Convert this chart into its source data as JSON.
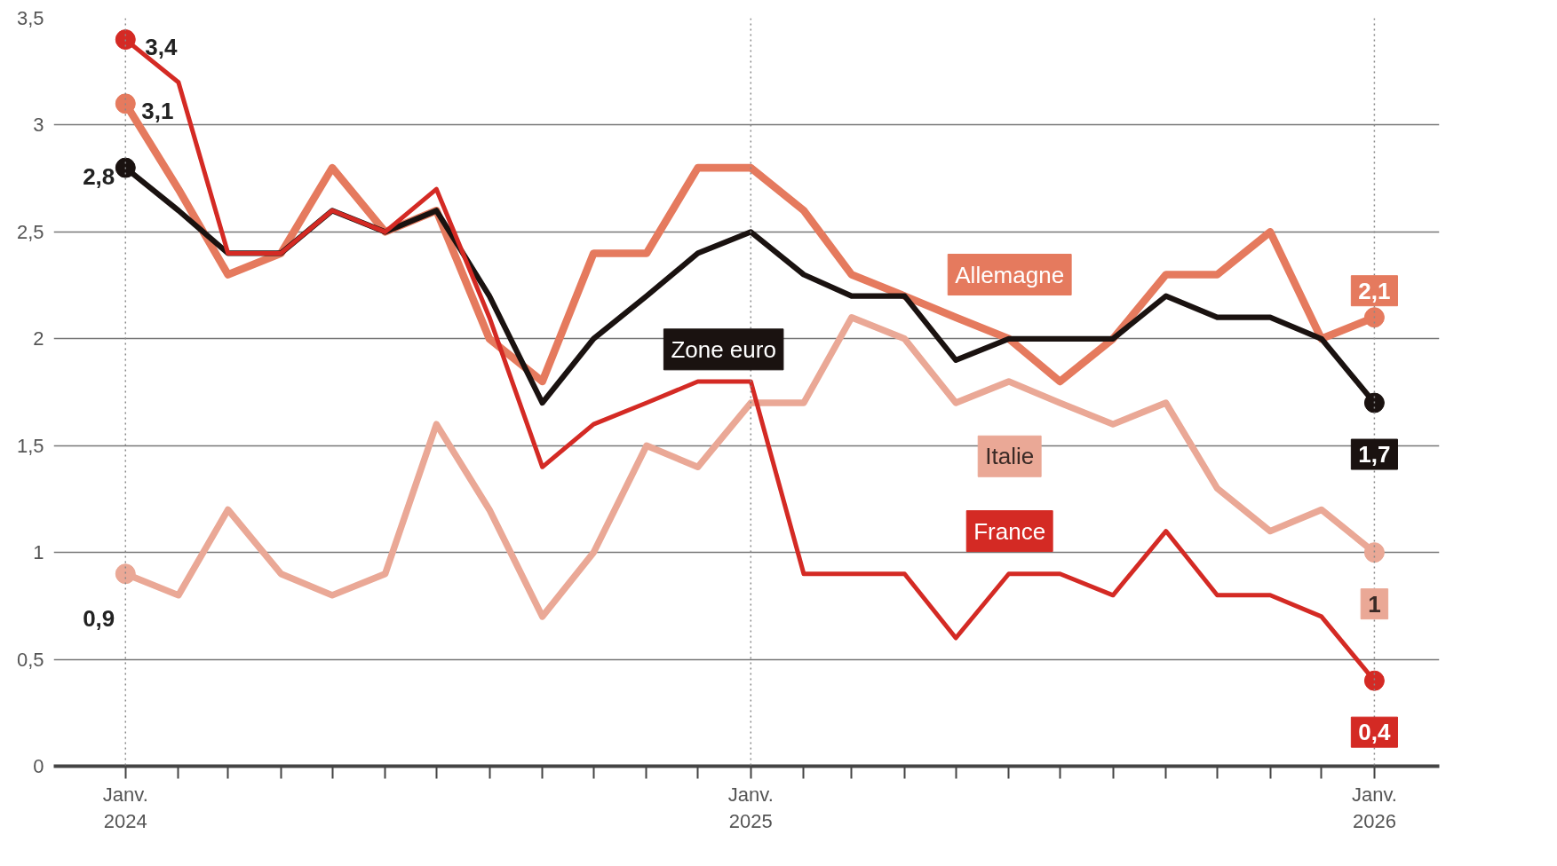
{
  "chart_data": {
    "type": "line",
    "x": [
      "2024-01",
      "2024-02",
      "2024-03",
      "2024-04",
      "2024-05",
      "2024-06",
      "2024-07",
      "2024-08",
      "2024-09",
      "2024-10",
      "2024-11",
      "2024-12",
      "2025-01",
      "2025-02",
      "2025-03",
      "2025-04",
      "2025-05",
      "2025-06",
      "2025-07",
      "2025-08",
      "2025-09",
      "2025-10",
      "2025-11",
      "2025-12",
      "2026-01"
    ],
    "series": [
      {
        "name": "Allemagne",
        "color": "#e57a5e",
        "values": [
          3.1,
          2.7,
          2.3,
          2.4,
          2.8,
          2.5,
          2.6,
          2.0,
          1.8,
          2.4,
          2.4,
          2.8,
          2.8,
          2.6,
          2.3,
          2.2,
          2.1,
          2.0,
          1.8,
          2.0,
          2.3,
          2.3,
          2.5,
          2.0,
          2.1
        ],
        "value_labels": [
          "3,1",
          null,
          null,
          null,
          null,
          null,
          null,
          null,
          null,
          null,
          null,
          null,
          null,
          null,
          null,
          null,
          null,
          null,
          null,
          null,
          null,
          null,
          null,
          null,
          "2,1"
        ]
      },
      {
        "name": "Italie",
        "color": "#eaa896",
        "values": [
          0.9,
          0.8,
          1.2,
          0.9,
          0.8,
          0.9,
          1.6,
          1.2,
          0.7,
          1.0,
          1.5,
          1.4,
          1.7,
          1.7,
          2.1,
          2.0,
          1.7,
          1.8,
          1.7,
          1.6,
          1.7,
          1.3,
          1.1,
          1.2,
          1.0
        ],
        "value_labels": [
          "0,9",
          null,
          null,
          null,
          null,
          null,
          null,
          null,
          null,
          null,
          null,
          null,
          null,
          null,
          null,
          null,
          null,
          null,
          null,
          null,
          null,
          null,
          null,
          null,
          "1"
        ]
      },
      {
        "name": "Zone euro",
        "color": "#1a1210",
        "values": [
          2.8,
          2.6,
          2.4,
          2.4,
          2.6,
          2.5,
          2.6,
          2.2,
          1.7,
          2.0,
          2.2,
          2.4,
          2.5,
          2.3,
          2.2,
          2.2,
          1.9,
          2.0,
          2.0,
          2.0,
          2.2,
          2.1,
          2.1,
          2.0,
          1.7
        ],
        "value_labels": [
          "2,8",
          null,
          null,
          null,
          null,
          null,
          null,
          null,
          null,
          null,
          null,
          null,
          null,
          null,
          null,
          null,
          null,
          null,
          null,
          null,
          null,
          null,
          null,
          null,
          "1,7"
        ]
      },
      {
        "name": "France",
        "color": "#d42a24",
        "values": [
          3.4,
          3.2,
          2.4,
          2.4,
          2.6,
          2.5,
          2.7,
          2.1,
          1.4,
          1.6,
          1.7,
          1.8,
          1.8,
          0.9,
          0.9,
          0.9,
          0.6,
          0.9,
          0.9,
          0.8,
          1.1,
          0.8,
          0.8,
          0.7,
          0.4
        ],
        "value_labels": [
          "3,4",
          null,
          null,
          null,
          null,
          null,
          null,
          null,
          null,
          null,
          null,
          null,
          null,
          null,
          null,
          null,
          null,
          null,
          null,
          null,
          null,
          null,
          null,
          null,
          "0,4"
        ]
      }
    ],
    "xlim": [
      "2023-11-20",
      "2026-02-08"
    ],
    "xticks": [
      {
        "value": "2024-01",
        "label": "Janv.\n2024"
      },
      {
        "value": "2024-02",
        "label": null
      },
      {
        "value": "2024-03",
        "label": null
      },
      {
        "value": "2024-04",
        "label": null
      },
      {
        "value": "2024-05",
        "label": null
      },
      {
        "value": "2024-06",
        "label": null
      },
      {
        "value": "2024-07",
        "label": null
      },
      {
        "value": "2024-08",
        "label": null
      },
      {
        "value": "2024-09",
        "label": null
      },
      {
        "value": "2024-10",
        "label": null
      },
      {
        "value": "2024-11",
        "label": null
      },
      {
        "value": "2024-12",
        "label": null
      },
      {
        "value": "2025-01",
        "label": "Janv.\n2025"
      },
      {
        "value": "2025-02",
        "label": null
      },
      {
        "value": "2025-03",
        "label": null
      },
      {
        "value": "2025-04",
        "label": null
      },
      {
        "value": "2025-05",
        "label": null
      },
      {
        "value": "2025-06",
        "label": null
      },
      {
        "value": "2025-07",
        "label": null
      },
      {
        "value": "2025-08",
        "label": null
      },
      {
        "value": "2025-09",
        "label": null
      },
      {
        "value": "2025-10",
        "label": null
      },
      {
        "value": "2025-11",
        "label": null
      },
      {
        "value": "2025-12",
        "label": null
      },
      {
        "value": "2026-01",
        "label": "Janv.\n2026"
      }
    ],
    "ylim": [
      0,
      3.5
    ],
    "yticks": [
      0,
      {
        "value": 0.5,
        "label": "0,5"
      },
      1,
      {
        "value": 1.5,
        "label": "1,5"
      },
      2,
      {
        "value": 2.5,
        "label": "2,5"
      },
      3,
      {
        "value": 3.5,
        "label": "3,5"
      }
    ],
    "ref_lines": [
      {
        "axis": "x",
        "value": "2024-01",
        "line_style": "dotted",
        "color": "#888888"
      },
      {
        "axis": "x",
        "value": "2025-01",
        "line_style": "dotted",
        "color": "#888888"
      },
      {
        "axis": "x",
        "value": "2026-01",
        "line_style": "dotted",
        "color": "#888888"
      }
    ],
    "grid": "y",
    "marker": "none",
    "line_style": "solid"
  }
}
